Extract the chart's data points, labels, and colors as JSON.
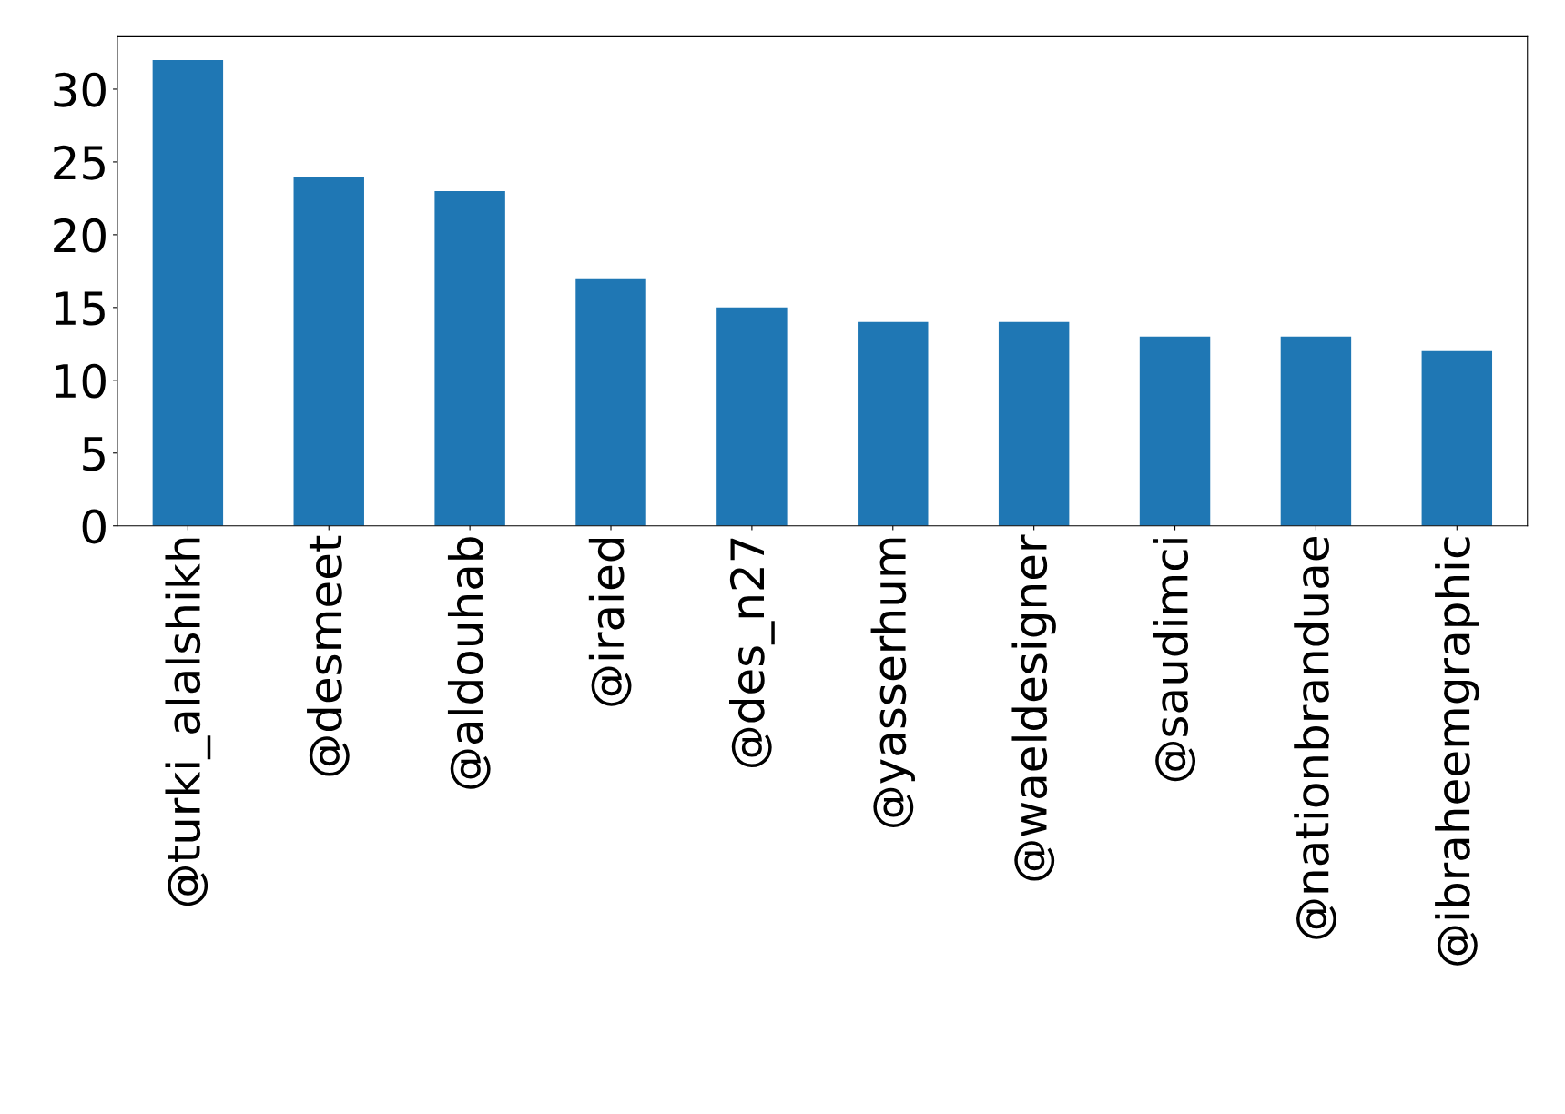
{
  "chart_data": {
    "type": "bar",
    "categories": [
      "@turki_alalshikh",
      "@desmeet",
      "@aldouhab",
      "@iraied",
      "@des_n27",
      "@yasserhum",
      "@waeldesigner",
      "@saudimci",
      "@nationbranduae",
      "@ibraheemgraphic"
    ],
    "values": [
      32,
      24,
      23,
      17,
      15,
      14,
      14,
      13,
      13,
      12
    ],
    "color": "#1f77b4",
    "ylim": [
      0,
      33.6
    ],
    "yticks": [
      0,
      5,
      10,
      15,
      20,
      25,
      30
    ],
    "grid": false,
    "legend": false
  }
}
